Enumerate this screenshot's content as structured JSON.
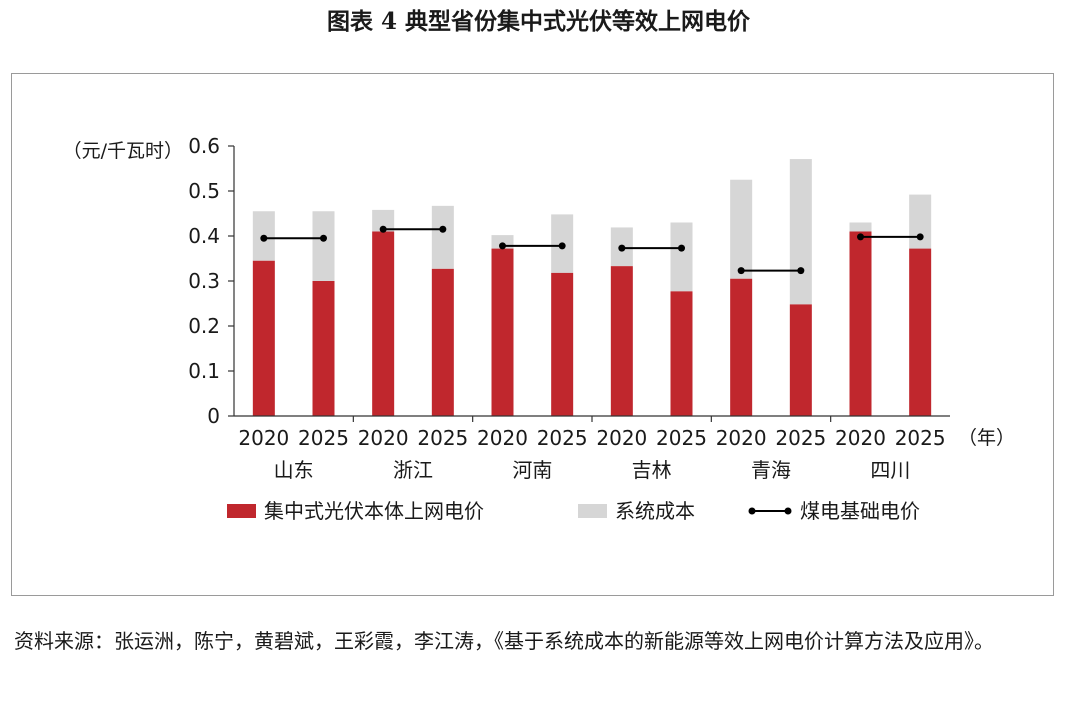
{
  "figure": {
    "title": "图表 4  典型省份集中式光伏等效上网电价",
    "source": "资料来源：张运洲，陈宁，黄碧斌，王彩霞，李江涛，《基于系统成本的新能源等效上网电价计算方法及应用》。"
  },
  "chart_data": {
    "type": "bar",
    "stacked": true,
    "ylabel": "（元/千瓦时）",
    "xunit": "（年）",
    "ylim": [
      0,
      0.6
    ],
    "yticks": [
      "0",
      "0.1",
      "0.2",
      "0.3",
      "0.4",
      "0.5",
      "0.6"
    ],
    "groups": [
      "山东",
      "浙江",
      "河南",
      "吉林",
      "青海",
      "四川"
    ],
    "years": [
      "2020",
      "2025"
    ],
    "series": [
      {
        "name": "集中式光伏本体上网电价",
        "color": "#c0272d",
        "values": [
          0.345,
          0.3,
          0.41,
          0.327,
          0.372,
          0.318,
          0.333,
          0.277,
          0.305,
          0.248,
          0.41,
          0.372
        ]
      },
      {
        "name": "系统成本",
        "color": "#d6d6d6",
        "values": [
          0.11,
          0.155,
          0.048,
          0.14,
          0.03,
          0.13,
          0.086,
          0.153,
          0.22,
          0.323,
          0.02,
          0.12
        ]
      },
      {
        "name": "煤电基础电价",
        "color": "#000000",
        "type": "line",
        "values": [
          0.395,
          0.395,
          0.415,
          0.415,
          0.378,
          0.378,
          0.373,
          0.373,
          0.323,
          0.323,
          0.398,
          0.398
        ]
      }
    ],
    "legend_position": "bottom",
    "grid": false
  }
}
